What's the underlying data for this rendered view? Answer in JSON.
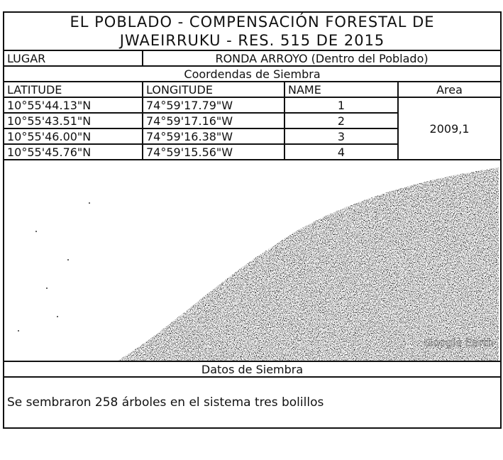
{
  "header": {
    "title_lines": [
      "EL POBLADO - COMPENSACIÓN FORESTAL DE",
      "JWAEIRRUKU - RES. 515 DE 2015"
    ]
  },
  "location": {
    "label": "LUGAR",
    "value": "RONDA ARROYO (Dentro del Poblado)"
  },
  "coordinates": {
    "title": "Coordendas de Siembra",
    "columns": [
      "LATITUDE",
      "LONGITUDE",
      "NAME",
      "Area"
    ],
    "rows": [
      [
        "10°55'44.13\"N",
        "74°59'17.79\"W",
        "1"
      ],
      [
        "10°55'43.51\"N",
        "74°59'17.16\"W",
        "2"
      ],
      [
        "10°55'46.00\"N",
        "74°59'16.38\"W",
        "3"
      ],
      [
        "10°55'45.76\"N",
        "74°59'15.56\"W",
        "4"
      ]
    ],
    "area": "2009,1"
  },
  "image": {
    "watermark": "Google Earth"
  },
  "planting": {
    "title": "Datos de Siembra",
    "text": "Se sembraron 258 árboles en el sistema tres bolillos"
  }
}
